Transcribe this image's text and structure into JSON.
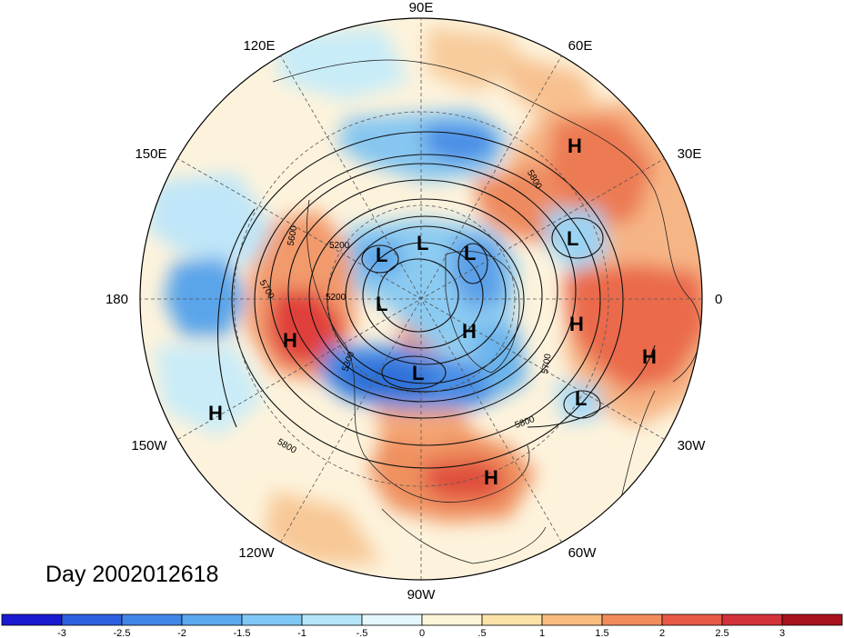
{
  "caption": "Day 2002012618",
  "longitude_labels": [
    "90E",
    "60E",
    "30E",
    "0",
    "30W",
    "60W",
    "90W",
    "120W",
    "150W",
    "180",
    "150E",
    "120E"
  ],
  "contour_labels": [
    "5200",
    "5200",
    "5300",
    "5600",
    "5700",
    "5700",
    "5800",
    "5800",
    "5800"
  ],
  "pressure_centers": [
    {
      "type": "H",
      "label": "H"
    },
    {
      "type": "H",
      "label": "H"
    },
    {
      "type": "H",
      "label": "H"
    },
    {
      "type": "H",
      "label": "H"
    },
    {
      "type": "H",
      "label": "H"
    },
    {
      "type": "H",
      "label": "H"
    },
    {
      "type": "H",
      "label": "H"
    },
    {
      "type": "L",
      "label": "L"
    },
    {
      "type": "L",
      "label": "L"
    },
    {
      "type": "L",
      "label": "L"
    },
    {
      "type": "L",
      "label": "L"
    },
    {
      "type": "L",
      "label": "L"
    },
    {
      "type": "L",
      "label": "L"
    },
    {
      "type": "L",
      "label": "L"
    }
  ],
  "colorbar": {
    "tick_labels": [
      "-3",
      "-2.5",
      "-2",
      "-1.5",
      "-1",
      "-.5",
      "0",
      ".5",
      "1",
      "1.5",
      "2",
      "2.5",
      "3"
    ],
    "colors": [
      "#1a1ad0",
      "#2e5fe0",
      "#3f86e6",
      "#5aa8ee",
      "#7fc8f5",
      "#b4e6f8",
      "#e4f7fb",
      "#fdf6d8",
      "#fbe3a8",
      "#f7bc7e",
      "#f28c5c",
      "#e85a46",
      "#d3323a",
      "#a8121e"
    ]
  },
  "colors": {
    "neg_strong": "#3f7de0",
    "neg_mid": "#7fc2f0",
    "neg_light": "#c4eaf7",
    "pos_light": "#fbe9c0",
    "pos_mid": "#f5a873",
    "pos_strong": "#e6503f",
    "background": "#fdf6e0"
  }
}
